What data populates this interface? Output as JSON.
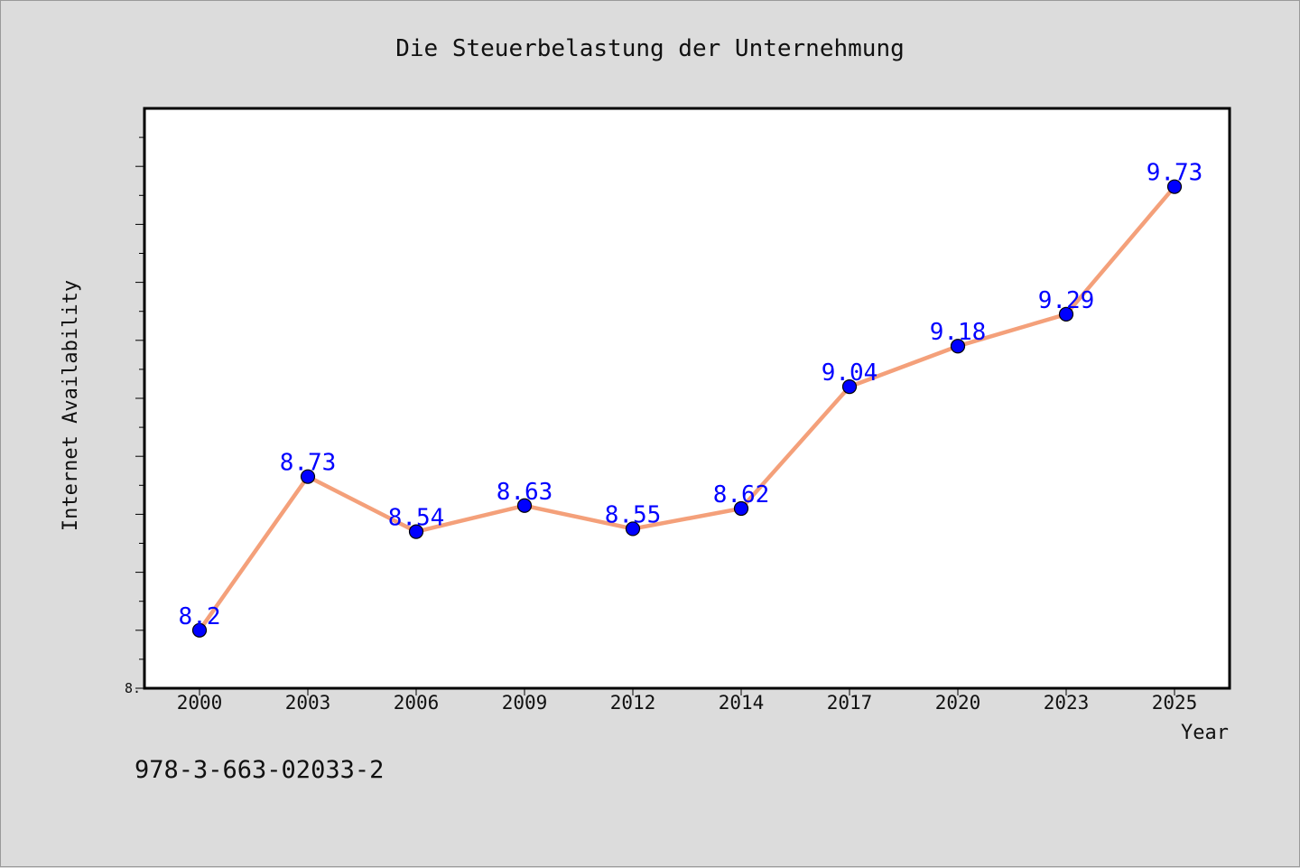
{
  "chart_data": {
    "type": "line",
    "title": "Die Steuerbelastung der Unternehmung",
    "xlabel": "Year",
    "ylabel": "Internet Availability",
    "categories": [
      "2000",
      "2003",
      "2006",
      "2009",
      "2012",
      "2014",
      "2017",
      "2020",
      "2023",
      "2025"
    ],
    "series": [
      {
        "values": [
          8.2,
          8.73,
          8.54,
          8.63,
          8.55,
          8.62,
          9.04,
          9.18,
          9.29,
          9.73
        ],
        "data_labels": [
          "8.2",
          "8.73",
          "8.54",
          "8.63",
          "8.55",
          "8.62",
          "9.04",
          "9.18",
          "9.29",
          "9.73"
        ],
        "line_color": "#f4a07a",
        "marker_color": "#0000ff"
      }
    ],
    "ylim": [
      8.0,
      10.0
    ],
    "ytick_labels": [
      "8."
    ],
    "grid": false,
    "legend": "none"
  },
  "footer": {
    "isbn": "978-3-663-02033-2"
  },
  "colors": {
    "background": "#dcdcdc",
    "plot_background": "#ffffff",
    "line": "#f4a07a",
    "marker": "#0000ff",
    "data_label": "#0000ff"
  }
}
